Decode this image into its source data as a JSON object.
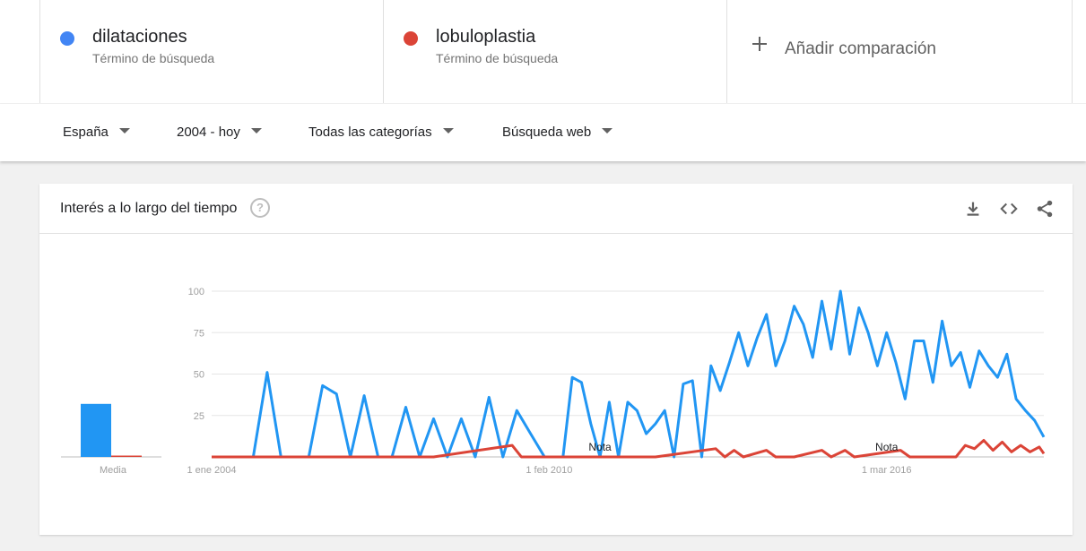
{
  "terms": [
    {
      "name": "dilataciones",
      "subtitle": "Término de búsqueda",
      "color": "#4285f4"
    },
    {
      "name": "lobuloplastia",
      "subtitle": "Término de búsqueda",
      "color": "#db4437"
    }
  ],
  "add_comparison": {
    "label": "Añadir comparación",
    "icon": "plus-icon"
  },
  "filters": [
    {
      "label": "España"
    },
    {
      "label": "2004 - hoy"
    },
    {
      "label": "Todas las categorías"
    },
    {
      "label": "Búsqueda web"
    }
  ],
  "card": {
    "title": "Interés a lo largo del tiempo",
    "help_icon": "help-icon",
    "help_glyph": "?",
    "actions": [
      "download-icon",
      "embed-icon",
      "share-icon"
    ]
  },
  "chart_data": {
    "type": "line",
    "ylim": [
      0,
      100
    ],
    "yticks": [
      {
        "value": 25,
        "label": "25"
      },
      {
        "value": 50,
        "label": "50"
      },
      {
        "value": 75,
        "label": "75"
      },
      {
        "value": 100,
        "label": "100"
      }
    ],
    "grid": true,
    "xlim": [
      "2004-01",
      "2019-01"
    ],
    "xticks": [
      {
        "date": "2004-01",
        "label": "1 ene 2004"
      },
      {
        "date": "2010-02",
        "label": "1 feb 2010"
      },
      {
        "date": "2016-03",
        "label": "1 mar 2016"
      }
    ],
    "notes": [
      {
        "date": "2011-01",
        "label": "Nota"
      },
      {
        "date": "2016-03",
        "label": "Nota"
      }
    ],
    "average": {
      "label": "Media",
      "values": [
        32,
        0.5
      ]
    },
    "series": [
      {
        "name": "dilataciones",
        "color": "#2196f3",
        "points": [
          [
            "2004-01",
            0
          ],
          [
            "2004-04",
            0
          ],
          [
            "2004-07",
            0
          ],
          [
            "2004-10",
            0
          ],
          [
            "2005-01",
            51
          ],
          [
            "2005-04",
            0
          ],
          [
            "2005-07",
            0
          ],
          [
            "2005-10",
            0
          ],
          [
            "2006-01",
            43
          ],
          [
            "2006-04",
            38
          ],
          [
            "2006-07",
            0
          ],
          [
            "2006-10",
            37
          ],
          [
            "2007-01",
            0
          ],
          [
            "2007-04",
            0
          ],
          [
            "2007-07",
            30
          ],
          [
            "2007-10",
            0
          ],
          [
            "2008-01",
            23
          ],
          [
            "2008-04",
            0
          ],
          [
            "2008-07",
            23
          ],
          [
            "2008-10",
            0
          ],
          [
            "2009-01",
            36
          ],
          [
            "2009-04",
            0
          ],
          [
            "2009-07",
            28
          ],
          [
            "2009-10",
            14
          ],
          [
            "2010-01",
            0
          ],
          [
            "2010-03",
            0
          ],
          [
            "2010-05",
            0
          ],
          [
            "2010-07",
            48
          ],
          [
            "2010-09",
            45
          ],
          [
            "2010-11",
            20
          ],
          [
            "2011-01",
            0
          ],
          [
            "2011-03",
            33
          ],
          [
            "2011-05",
            0
          ],
          [
            "2011-07",
            33
          ],
          [
            "2011-09",
            28
          ],
          [
            "2011-11",
            14
          ],
          [
            "2012-01",
            20
          ],
          [
            "2012-03",
            28
          ],
          [
            "2012-05",
            0
          ],
          [
            "2012-07",
            44
          ],
          [
            "2012-09",
            46
          ],
          [
            "2012-11",
            0
          ],
          [
            "2013-01",
            55
          ],
          [
            "2013-03",
            40
          ],
          [
            "2013-05",
            57
          ],
          [
            "2013-07",
            75
          ],
          [
            "2013-09",
            55
          ],
          [
            "2013-11",
            72
          ],
          [
            "2014-01",
            86
          ],
          [
            "2014-03",
            55
          ],
          [
            "2014-05",
            70
          ],
          [
            "2014-07",
            91
          ],
          [
            "2014-09",
            80
          ],
          [
            "2014-11",
            60
          ],
          [
            "2015-01",
            94
          ],
          [
            "2015-03",
            65
          ],
          [
            "2015-05",
            100
          ],
          [
            "2015-07",
            62
          ],
          [
            "2015-09",
            90
          ],
          [
            "2015-11",
            75
          ],
          [
            "2016-01",
            55
          ],
          [
            "2016-03",
            75
          ],
          [
            "2016-05",
            57
          ],
          [
            "2016-07",
            35
          ],
          [
            "2016-09",
            70
          ],
          [
            "2016-11",
            70
          ],
          [
            "2017-01",
            45
          ],
          [
            "2017-03",
            82
          ],
          [
            "2017-05",
            55
          ],
          [
            "2017-07",
            63
          ],
          [
            "2017-09",
            42
          ],
          [
            "2017-11",
            64
          ],
          [
            "2018-01",
            55
          ],
          [
            "2018-03",
            48
          ],
          [
            "2018-05",
            62
          ],
          [
            "2018-07",
            35
          ],
          [
            "2018-09",
            28
          ],
          [
            "2018-11",
            22
          ],
          [
            "2019-01",
            12
          ]
        ]
      },
      {
        "name": "lobuloplastia",
        "color": "#db4437",
        "points": [
          [
            "2004-01",
            0
          ],
          [
            "2006-01",
            0
          ],
          [
            "2008-01",
            0
          ],
          [
            "2009-06",
            7
          ],
          [
            "2009-08",
            0
          ],
          [
            "2010-01",
            0
          ],
          [
            "2012-01",
            0
          ],
          [
            "2013-02",
            5
          ],
          [
            "2013-04",
            0
          ],
          [
            "2013-06",
            4
          ],
          [
            "2013-08",
            0
          ],
          [
            "2014-01",
            4
          ],
          [
            "2014-03",
            0
          ],
          [
            "2014-07",
            0
          ],
          [
            "2015-01",
            4
          ],
          [
            "2015-03",
            0
          ],
          [
            "2015-06",
            4
          ],
          [
            "2015-08",
            0
          ],
          [
            "2016-06",
            4
          ],
          [
            "2016-08",
            0
          ],
          [
            "2017-06",
            0
          ],
          [
            "2017-08",
            7
          ],
          [
            "2017-10",
            5
          ],
          [
            "2017-12",
            10
          ],
          [
            "2018-02",
            4
          ],
          [
            "2018-04",
            9
          ],
          [
            "2018-06",
            3
          ],
          [
            "2018-08",
            7
          ],
          [
            "2018-10",
            3
          ],
          [
            "2018-12",
            6
          ],
          [
            "2019-01",
            2
          ]
        ]
      }
    ]
  }
}
